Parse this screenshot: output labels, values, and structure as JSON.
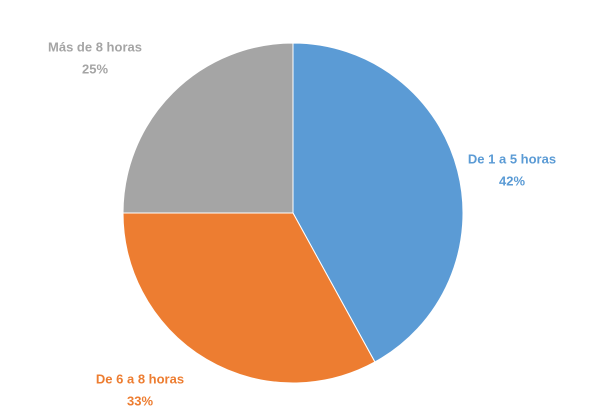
{
  "chart_data": {
    "type": "pie",
    "categories": [
      "De 1 a 5 horas",
      "De 6 a 8 horas",
      "Más de 8 horas"
    ],
    "values": [
      42,
      33,
      25
    ],
    "value_labels": [
      "42%",
      "33%",
      "25%"
    ],
    "colors": [
      "#5b9bd5",
      "#ed7d31",
      "#a5a5a5"
    ]
  }
}
